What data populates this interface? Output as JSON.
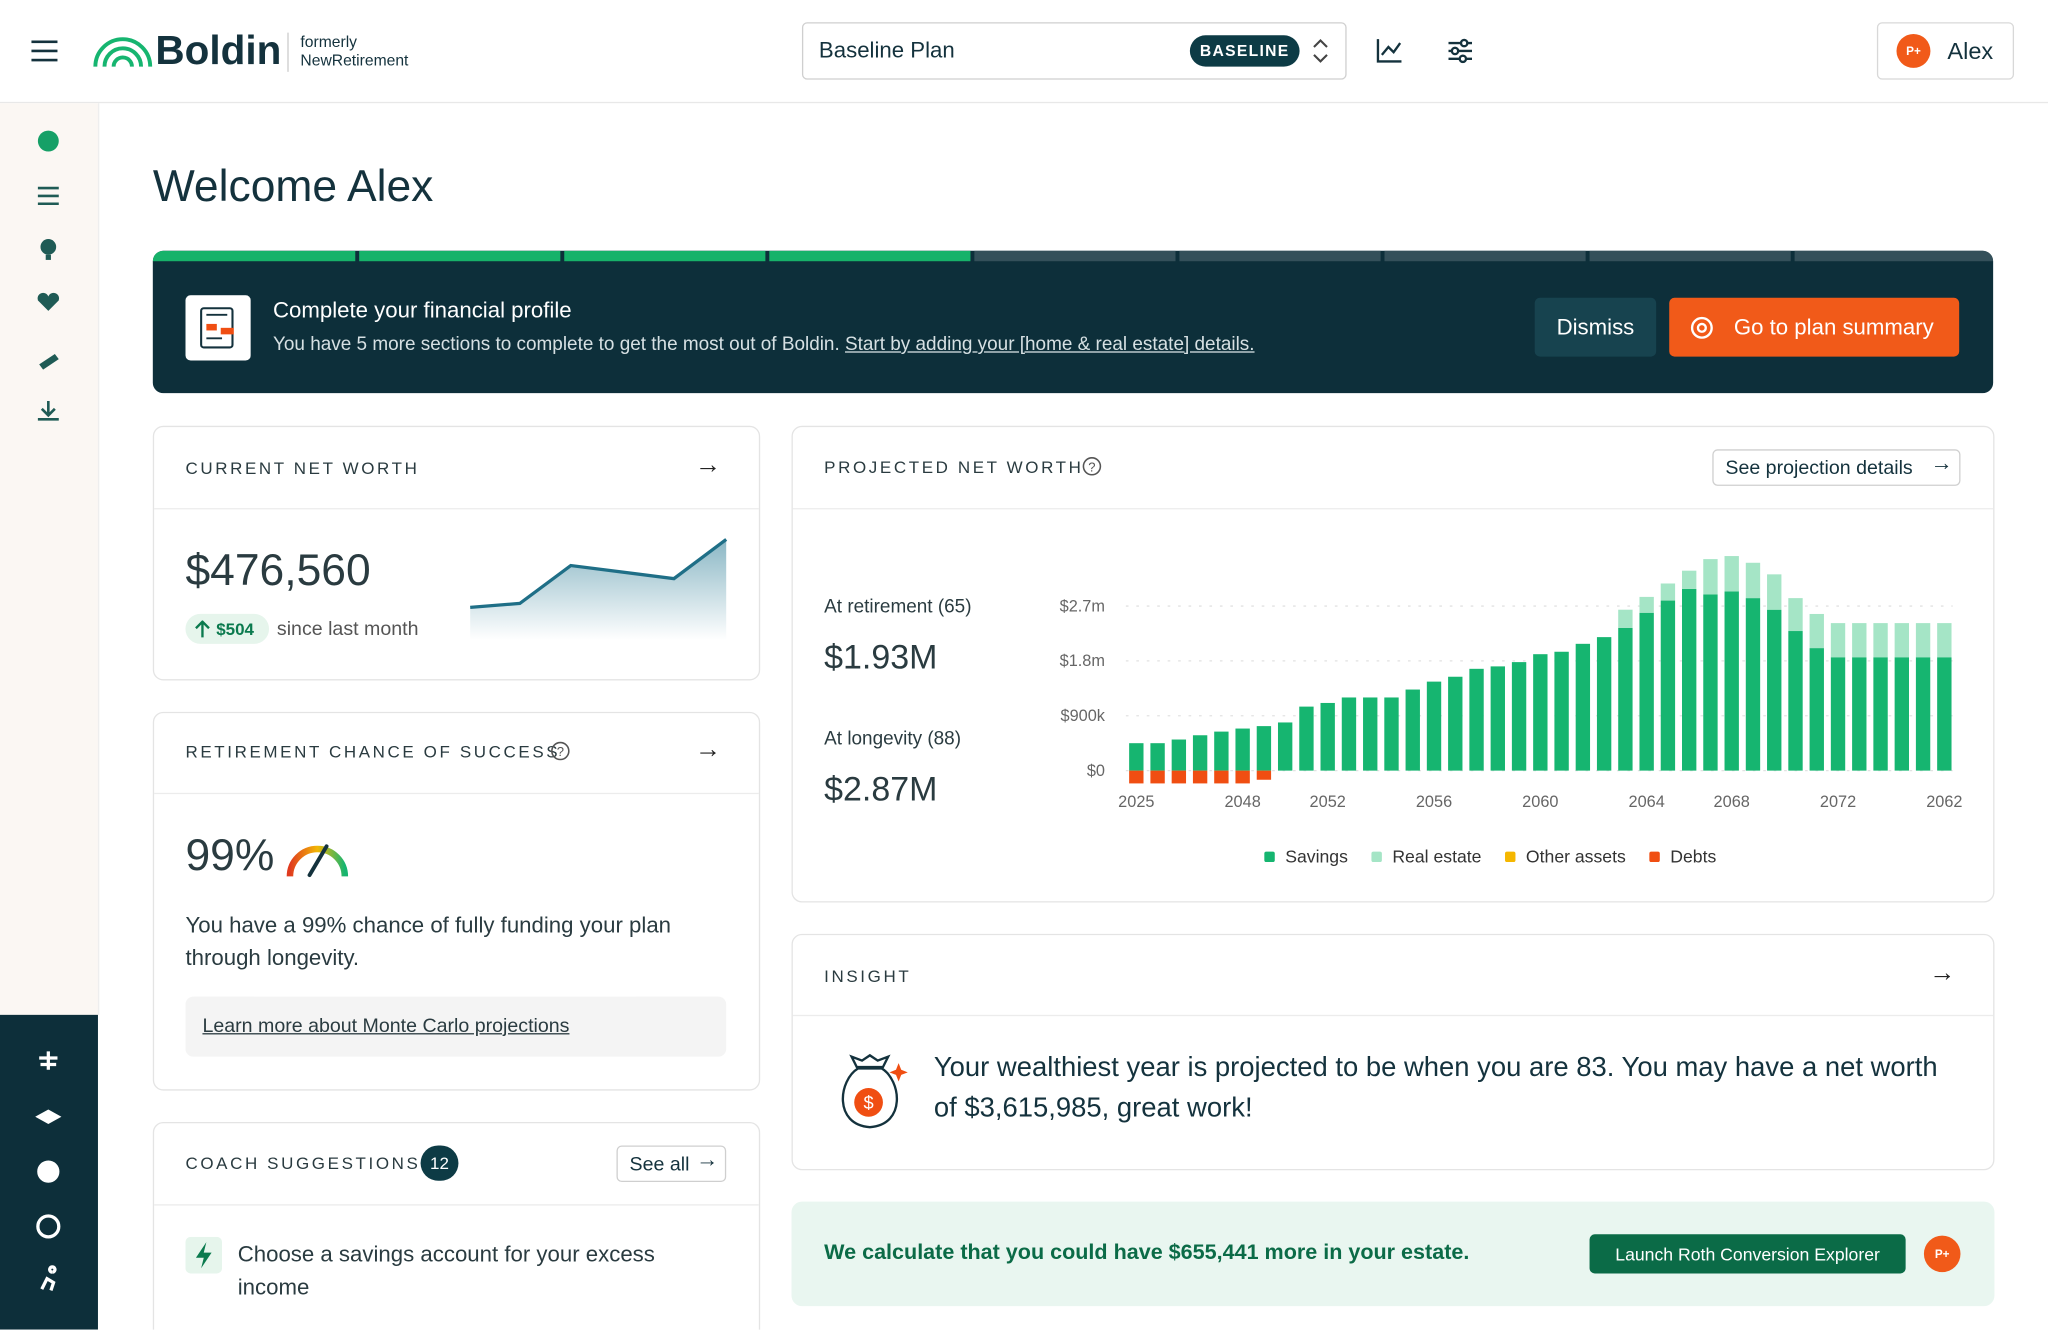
{
  "header": {
    "logo": "Boldin",
    "formerly": "formerly",
    "former_name": "NewRetirement",
    "plan": "Baseline Plan",
    "plan_badge": "BASELINE",
    "user": "Alex",
    "user_badge": "P+"
  },
  "welcome": "Welcome Alex",
  "banner": {
    "title": "Complete your financial profile",
    "text": "You have 5 more sections to complete to get the most out of Boldin.",
    "link": "Start by adding your [home & real estate] details.",
    "dismiss": "Dismiss",
    "cta": "Go to plan summary"
  },
  "net_worth": {
    "title": "CURRENT NET WORTH",
    "value": "$476,560",
    "change": "$504",
    "change_note": "since last month"
  },
  "success": {
    "title": "RETIREMENT CHANCE OF SUCCESS",
    "value": "99%",
    "text": "You have a 99% chance of fully funding your plan through longevity.",
    "link": "Learn more about Monte Carlo projections"
  },
  "coach": {
    "title": "COACH SUGGESTIONS",
    "count": "12",
    "see_all": "See all",
    "item": "Choose a savings account for your excess income"
  },
  "projection": {
    "title": "PROJECTED NET WORTH",
    "details": "See projection details",
    "retirement_label": "At retirement (65)",
    "retirement_value": "$1.93M",
    "longevity_label": "At longevity (88)",
    "longevity_value": "$2.87M"
  },
  "chart_data": {
    "type": "stacked_bar",
    "categories": [
      "2025",
      null,
      null,
      null,
      null,
      "2048",
      null,
      null,
      null,
      "2052",
      null,
      null,
      null,
      null,
      "2056",
      null,
      null,
      null,
      null,
      "2060",
      null,
      null,
      null,
      null,
      "2064",
      null,
      null,
      null,
      "2068",
      null,
      null,
      null,
      null,
      "2072",
      null,
      null,
      null,
      null,
      "2062"
    ],
    "series": [
      {
        "name": "Savings",
        "color": "#16b570",
        "values": [
          450000,
          450000,
          510000,
          580000,
          640000,
          690000,
          730000,
          790000,
          1050000,
          1110000,
          1200000,
          1200000,
          1200000,
          1330000,
          1460000,
          1540000,
          1670000,
          1710000,
          1780000,
          1910000,
          1950000,
          2080000,
          2190000,
          2340000,
          2590000,
          2790000,
          2980000,
          2890000,
          2940000,
          2830000,
          2640000,
          2290000,
          2010000,
          1860000,
          1860000,
          1860000,
          1860000,
          1860000,
          1860000
        ]
      },
      {
        "name": "Real estate",
        "color": "#a5e5c6",
        "values": [
          0,
          0,
          0,
          0,
          0,
          0,
          0,
          0,
          0,
          0,
          0,
          0,
          0,
          0,
          0,
          0,
          0,
          0,
          0,
          0,
          0,
          0,
          0,
          300000,
          260000,
          280000,
          300000,
          580000,
          580000,
          580000,
          580000,
          540000,
          560000,
          560000,
          560000,
          560000,
          560000,
          560000,
          560000
        ]
      },
      {
        "name": "Other assets",
        "color": "#f5b700",
        "values": [
          0,
          0,
          0,
          0,
          0,
          0,
          0,
          0,
          0,
          0,
          0,
          0,
          0,
          0,
          0,
          0,
          0,
          0,
          0,
          0,
          0,
          0,
          0,
          0,
          0,
          0,
          0,
          0,
          0,
          0,
          0,
          0,
          0,
          0,
          0,
          0,
          0,
          0,
          0
        ]
      },
      {
        "name": "Debts",
        "color": "#f04e12",
        "values": [
          -210000,
          -210000,
          -210000,
          -210000,
          -210000,
          -210000,
          -150000,
          0,
          0,
          0,
          0,
          0,
          0,
          0,
          0,
          0,
          0,
          0,
          0,
          0,
          0,
          0,
          0,
          0,
          0,
          0,
          0,
          0,
          0,
          0,
          0,
          0,
          0,
          0,
          0,
          0,
          0,
          0,
          0
        ]
      }
    ],
    "ylim": [
      -300000,
      3600000
    ],
    "yticks": [
      {
        "value": 0,
        "label": "$0"
      },
      {
        "value": 900000,
        "label": "$900k"
      },
      {
        "value": 1800000,
        "label": "$1.8m"
      },
      {
        "value": 2700000,
        "label": "$2.7m"
      }
    ],
    "grid": true
  },
  "insight": {
    "title": "INSIGHT",
    "text": "Your wealthiest year is projected to be when you are 83. You may have a net worth of $3,615,985, great work!"
  },
  "roth": {
    "text": "We calculate that you could have $655,441 more in your estate.",
    "button": "Launch Roth Conversion Explorer",
    "badge": "P+"
  }
}
